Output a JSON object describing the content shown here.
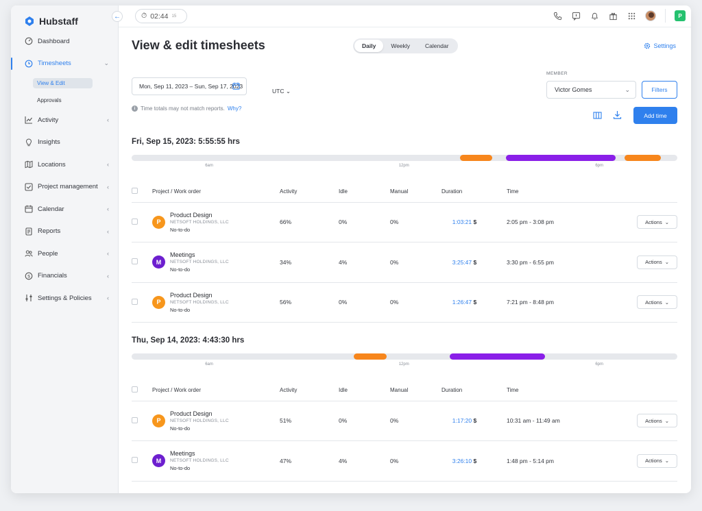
{
  "app": {
    "brand": "Hubstaff"
  },
  "colors": {
    "accent": "#2f80ed",
    "orange": "#f7861c",
    "purple": "#8a1fe8",
    "product_avatar": "#f7961c",
    "meetings_avatar": "#6d1fcf",
    "org_badge": "#25c16f"
  },
  "topbar": {
    "timer": "02:44",
    "timer_seconds": "15",
    "icons": [
      "phone-icon",
      "chat-icon",
      "bell-icon",
      "gift-icon",
      "apps-grid-icon"
    ],
    "org_initial": "P"
  },
  "sidebar": {
    "items": [
      {
        "label": "Dashboard",
        "icon": "dashboard-icon",
        "chevron": false
      },
      {
        "label": "Timesheets",
        "icon": "clock-icon",
        "chevron": true,
        "active": true
      },
      {
        "label": "Activity",
        "icon": "activity-chart-icon",
        "chevron": true
      },
      {
        "label": "Insights",
        "icon": "lightbulb-icon",
        "chevron": false
      },
      {
        "label": "Locations",
        "icon": "map-icon",
        "chevron": true
      },
      {
        "label": "Project management",
        "icon": "checkbox-icon",
        "chevron": true
      },
      {
        "label": "Calendar",
        "icon": "calendar-icon",
        "chevron": true
      },
      {
        "label": "Reports",
        "icon": "report-icon",
        "chevron": true
      },
      {
        "label": "People",
        "icon": "people-icon",
        "chevron": true
      },
      {
        "label": "Financials",
        "icon": "dollar-icon",
        "chevron": true
      },
      {
        "label": "Settings & Policies",
        "icon": "sliders-icon",
        "chevron": true
      }
    ],
    "sub_items": [
      {
        "label": "View & Edit",
        "selected": true
      },
      {
        "label": "Approvals",
        "selected": false
      }
    ]
  },
  "main": {
    "title": "View & edit timesheets",
    "view_tabs": [
      "Daily",
      "Weekly",
      "Calendar"
    ],
    "active_view": "Daily",
    "settings_label": "Settings",
    "date_range": "Mon, Sep 11, 2023 – Sun, Sep 17, 2023",
    "timezone": "UTC",
    "note": "Time totals may not match reports.",
    "note_link": "Why?",
    "member_label": "MEMBER",
    "member_value": "Victor Gomes",
    "filters_label": "Filters",
    "add_time_label": "Add time"
  },
  "table_headers": {
    "project": "Project / Work order",
    "activity": "Activity",
    "idle": "Idle",
    "manual": "Manual",
    "duration": "Duration",
    "time": "Time"
  },
  "tick_labels": [
    "6am",
    "12pm",
    "6pm"
  ],
  "days": [
    {
      "title": "Fri, Sep 15, 2023: 5:55:55 hrs",
      "segments": [
        {
          "start": 0.602,
          "end": 0.661,
          "color": "orange"
        },
        {
          "start": 0.686,
          "end": 0.887,
          "color": "purple"
        },
        {
          "start": 0.903,
          "end": 0.97,
          "color": "orange"
        }
      ],
      "rows": [
        {
          "initial": "P",
          "project": "Product Design",
          "org": "NETSOFT HOLDINGS, LLC",
          "todo": "No-to-do",
          "avatar": "product",
          "activity": "66%",
          "idle": "0%",
          "manual": "0%",
          "duration": "1:03:21",
          "currency": "$",
          "time": "2:05 pm - 3:08 pm",
          "actions": "Actions"
        },
        {
          "initial": "M",
          "project": "Meetings",
          "org": "NETSOFT HOLDINGS, LLC",
          "todo": "No-to-do",
          "avatar": "meetings",
          "activity": "34%",
          "idle": "4%",
          "manual": "0%",
          "duration": "3:25:47",
          "currency": "$",
          "time": "3:30 pm - 6:55 pm",
          "actions": "Actions"
        },
        {
          "initial": "P",
          "project": "Product Design",
          "org": "NETSOFT HOLDINGS, LLC",
          "todo": "No-to-do",
          "avatar": "product",
          "activity": "56%",
          "idle": "0%",
          "manual": "0%",
          "duration": "1:26:47",
          "currency": "$",
          "time": "7:21 pm - 8:48 pm",
          "actions": "Actions"
        }
      ]
    },
    {
      "title": "Thu, Sep 14, 2023: 4:43:30 hrs",
      "segments": [
        {
          "start": 0.407,
          "end": 0.467,
          "color": "orange"
        },
        {
          "start": 0.583,
          "end": 0.757,
          "color": "purple"
        }
      ],
      "rows": [
        {
          "initial": "P",
          "project": "Product Design",
          "org": "NETSOFT HOLDINGS, LLC",
          "todo": "No-to-do",
          "avatar": "product",
          "activity": "51%",
          "idle": "0%",
          "manual": "0%",
          "duration": "1:17:20",
          "currency": "$",
          "time": "10:31 am - 11:49 am",
          "actions": "Actions"
        },
        {
          "initial": "M",
          "project": "Meetings",
          "org": "NETSOFT HOLDINGS, LLC",
          "todo": "No-to-do",
          "avatar": "meetings",
          "activity": "47%",
          "idle": "4%",
          "manual": "0%",
          "duration": "3:26:10",
          "currency": "$",
          "time": "1:48 pm - 5:14 pm",
          "actions": "Actions"
        }
      ]
    }
  ]
}
